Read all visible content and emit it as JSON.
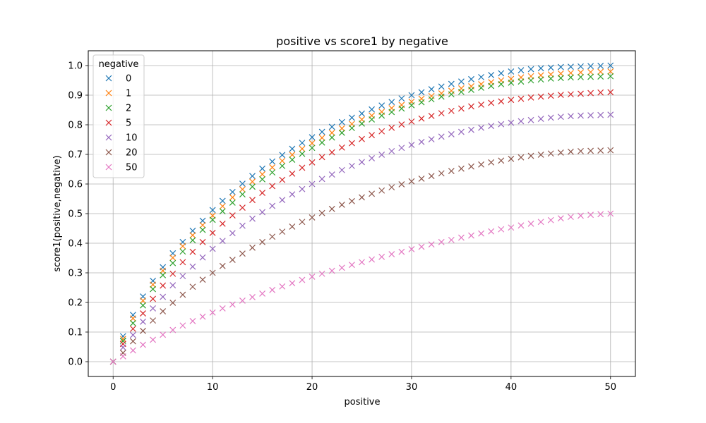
{
  "chart_data": {
    "type": "scatter",
    "title": "positive vs score1 by negative",
    "xlabel": "positive",
    "ylabel": "score1(positive,negative)",
    "xlim": [
      -2.5,
      52.5
    ],
    "ylim": [
      -0.05,
      1.05
    ],
    "xticks": [
      0,
      10,
      20,
      30,
      40,
      50
    ],
    "xtick_labels": [
      "0",
      "10",
      "20",
      "30",
      "40",
      "50"
    ],
    "yticks": [
      0.0,
      0.1,
      0.2,
      0.3,
      0.4,
      0.5,
      0.6,
      0.7,
      0.8,
      0.9,
      1.0
    ],
    "ytick_labels": [
      "0.0",
      "0.1",
      "0.2",
      "0.3",
      "0.4",
      "0.5",
      "0.6",
      "0.7",
      "0.8",
      "0.9",
      "1.0"
    ],
    "grid": true,
    "marker": "x",
    "legend": {
      "title": "negative",
      "placement": "top-left"
    },
    "x": [
      0,
      1,
      2,
      3,
      4,
      5,
      6,
      7,
      8,
      9,
      10,
      11,
      12,
      13,
      14,
      15,
      16,
      17,
      18,
      19,
      20,
      21,
      22,
      23,
      24,
      25,
      26,
      27,
      28,
      29,
      30,
      31,
      32,
      33,
      34,
      35,
      36,
      37,
      38,
      39,
      40,
      41,
      42,
      43,
      44,
      45,
      46,
      47,
      48,
      49,
      50
    ],
    "series": [
      {
        "name": "0",
        "color": "#1f77b4",
        "values": [
          0.0,
          0.086,
          0.158,
          0.22,
          0.273,
          0.319,
          0.366,
          0.404,
          0.442,
          0.476,
          0.512,
          0.543,
          0.573,
          0.601,
          0.627,
          0.652,
          0.676,
          0.698,
          0.719,
          0.739,
          0.758,
          0.776,
          0.793,
          0.809,
          0.824,
          0.838,
          0.852,
          0.865,
          0.877,
          0.889,
          0.9,
          0.91,
          0.92,
          0.929,
          0.938,
          0.946,
          0.954,
          0.961,
          0.968,
          0.974,
          0.98,
          0.984,
          0.988,
          0.991,
          0.993,
          0.995,
          0.996,
          0.997,
          0.998,
          0.999,
          1.0
        ]
      },
      {
        "name": "1",
        "color": "#ff7f0e",
        "values": [
          0.0,
          0.077,
          0.146,
          0.206,
          0.26,
          0.307,
          0.351,
          0.39,
          0.427,
          0.461,
          0.493,
          0.525,
          0.555,
          0.582,
          0.608,
          0.633,
          0.656,
          0.678,
          0.699,
          0.719,
          0.738,
          0.756,
          0.773,
          0.788,
          0.803,
          0.818,
          0.831,
          0.844,
          0.856,
          0.867,
          0.878,
          0.888,
          0.897,
          0.906,
          0.915,
          0.923,
          0.93,
          0.937,
          0.944,
          0.95,
          0.955,
          0.96,
          0.964,
          0.967,
          0.97,
          0.973,
          0.975,
          0.977,
          0.978,
          0.979,
          0.98
        ]
      },
      {
        "name": "2",
        "color": "#2ca02c",
        "values": [
          0.0,
          0.07,
          0.13,
          0.19,
          0.245,
          0.292,
          0.333,
          0.372,
          0.41,
          0.445,
          0.479,
          0.508,
          0.537,
          0.565,
          0.591,
          0.616,
          0.639,
          0.661,
          0.682,
          0.702,
          0.722,
          0.74,
          0.757,
          0.773,
          0.789,
          0.804,
          0.818,
          0.831,
          0.843,
          0.855,
          0.866,
          0.876,
          0.886,
          0.895,
          0.903,
          0.911,
          0.918,
          0.925,
          0.931,
          0.937,
          0.942,
          0.946,
          0.95,
          0.953,
          0.956,
          0.958,
          0.96,
          0.961,
          0.962,
          0.963,
          0.964
        ]
      },
      {
        "name": "5",
        "color": "#d62728",
        "values": [
          0.0,
          0.06,
          0.111,
          0.163,
          0.212,
          0.257,
          0.297,
          0.336,
          0.371,
          0.404,
          0.435,
          0.466,
          0.494,
          0.52,
          0.546,
          0.57,
          0.593,
          0.614,
          0.635,
          0.655,
          0.673,
          0.691,
          0.707,
          0.723,
          0.738,
          0.752,
          0.765,
          0.778,
          0.79,
          0.801,
          0.811,
          0.821,
          0.83,
          0.839,
          0.847,
          0.855,
          0.862,
          0.868,
          0.874,
          0.879,
          0.884,
          0.888,
          0.892,
          0.895,
          0.898,
          0.901,
          0.903,
          0.905,
          0.907,
          0.909,
          0.91
        ]
      },
      {
        "name": "10",
        "color": "#9467bd",
        "values": [
          0.0,
          0.048,
          0.09,
          0.135,
          0.18,
          0.219,
          0.258,
          0.289,
          0.321,
          0.352,
          0.381,
          0.408,
          0.434,
          0.459,
          0.483,
          0.505,
          0.526,
          0.546,
          0.565,
          0.583,
          0.6,
          0.617,
          0.632,
          0.647,
          0.661,
          0.674,
          0.687,
          0.699,
          0.711,
          0.722,
          0.732,
          0.742,
          0.751,
          0.76,
          0.768,
          0.776,
          0.783,
          0.79,
          0.796,
          0.802,
          0.807,
          0.812,
          0.816,
          0.82,
          0.824,
          0.827,
          0.829,
          0.831,
          0.832,
          0.833,
          0.834
        ]
      },
      {
        "name": "20",
        "color": "#8c564b",
        "values": [
          0.0,
          0.03,
          0.069,
          0.104,
          0.139,
          0.17,
          0.199,
          0.226,
          0.253,
          0.277,
          0.3,
          0.323,
          0.344,
          0.365,
          0.385,
          0.404,
          0.422,
          0.439,
          0.456,
          0.472,
          0.487,
          0.502,
          0.516,
          0.53,
          0.542,
          0.555,
          0.567,
          0.578,
          0.589,
          0.599,
          0.609,
          0.618,
          0.627,
          0.636,
          0.644,
          0.652,
          0.659,
          0.666,
          0.673,
          0.679,
          0.685,
          0.69,
          0.695,
          0.699,
          0.703,
          0.706,
          0.709,
          0.711,
          0.712,
          0.713,
          0.714
        ]
      },
      {
        "name": "50",
        "color": "#e377c2",
        "values": [
          0.0,
          0.018,
          0.038,
          0.057,
          0.074,
          0.091,
          0.107,
          0.122,
          0.137,
          0.152,
          0.166,
          0.18,
          0.193,
          0.206,
          0.218,
          0.23,
          0.242,
          0.254,
          0.265,
          0.276,
          0.287,
          0.297,
          0.307,
          0.317,
          0.327,
          0.336,
          0.345,
          0.354,
          0.363,
          0.371,
          0.38,
          0.388,
          0.396,
          0.404,
          0.411,
          0.419,
          0.426,
          0.433,
          0.44,
          0.447,
          0.453,
          0.46,
          0.466,
          0.472,
          0.478,
          0.484,
          0.489,
          0.493,
          0.496,
          0.498,
          0.5
        ]
      }
    ]
  }
}
